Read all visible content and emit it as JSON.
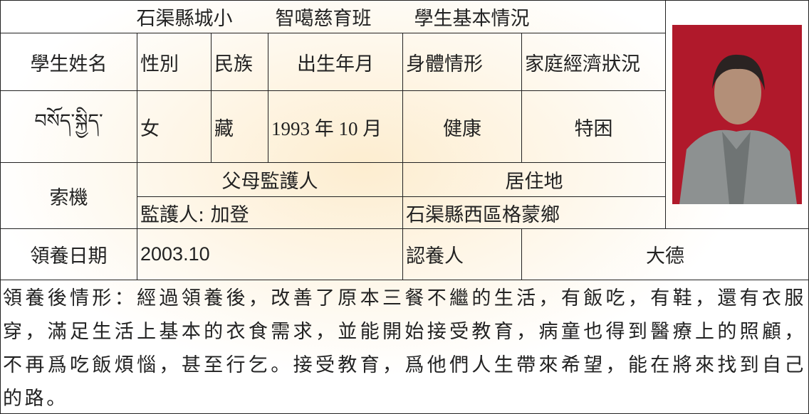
{
  "title": [
    "石渠縣城小",
    "智噶慈育班",
    "學生基本情況"
  ],
  "headers": [
    "學生姓名",
    "性別",
    "民族",
    "出生年月",
    "身體情形",
    "家庭經濟狀況"
  ],
  "student": [
    "བསོད་སྐྱིད་",
    "女",
    "藏",
    "1993 年 10 月",
    "健康",
    "特困"
  ],
  "chinese_name": "索機",
  "guardian_header": "父母監護人",
  "residence_header": "居住地",
  "guardian": "監護人: 加登",
  "residence": "石渠縣西區格蒙鄉",
  "adoption_date_label": "領養日期",
  "adoption_date": "2003.10",
  "sponsor_label": "認養人",
  "sponsor": "大德",
  "situation": "領養後情形：經過領養後，改善了原本三餐不繼的生活，有飯吃，有鞋，還有衣服穿，滿足生活上基本的衣食需求，並能開始接受教育，病童也得到醫療上的照顧，不再爲吃飯煩惱，甚至行乞。接受教育，爲他們人生帶來希望，能在將來找到自己的路。"
}
